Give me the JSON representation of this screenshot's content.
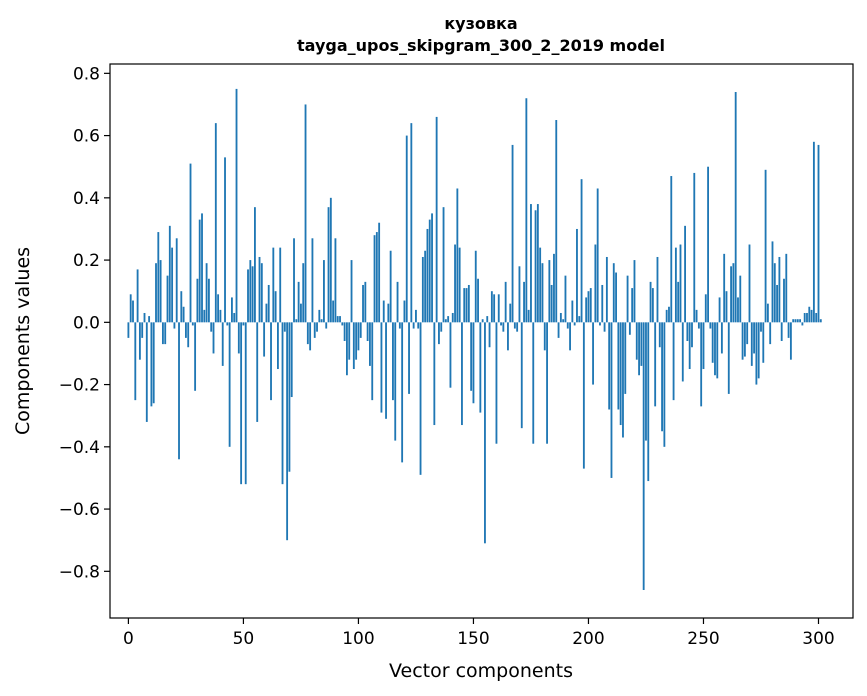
{
  "chart_data": {
    "type": "bar",
    "title": "кузовка",
    "subtitle": "tayga_upos_skipgram_300_2_2019 model",
    "xlabel": "Vector components",
    "ylabel": "Components values",
    "xlim": [
      -8,
      315
    ],
    "ylim": [
      -0.95,
      0.83
    ],
    "x_ticks": [
      0,
      50,
      100,
      150,
      200,
      250,
      300
    ],
    "y_ticks": [
      -0.8,
      -0.6,
      -0.4,
      -0.2,
      0.0,
      0.2,
      0.4,
      0.6,
      0.8
    ],
    "x_tick_labels": [
      "0",
      "50",
      "100",
      "150",
      "200",
      "250",
      "300"
    ],
    "y_tick_labels": [
      "−0.8",
      "−0.6",
      "−0.4",
      "−0.2",
      "0.0",
      "0.2",
      "0.4",
      "0.6",
      "0.8"
    ],
    "grid": false,
    "bar_color": "#1f77b4",
    "values": [
      -0.05,
      0.09,
      0.07,
      -0.25,
      0.17,
      -0.12,
      -0.05,
      0.03,
      -0.32,
      0.02,
      -0.27,
      -0.26,
      0.19,
      0.29,
      0.2,
      -0.07,
      -0.07,
      0.15,
      0.31,
      0.24,
      -0.02,
      0.27,
      -0.44,
      0.1,
      0.05,
      -0.05,
      -0.08,
      0.51,
      -0.01,
      -0.22,
      0.14,
      0.33,
      0.35,
      0.04,
      0.19,
      0.14,
      -0.03,
      -0.1,
      0.64,
      0.09,
      0.04,
      -0.14,
      0.53,
      -0.01,
      -0.4,
      0.08,
      0.03,
      0.75,
      -0.1,
      -0.52,
      -0.01,
      -0.52,
      0.17,
      0.2,
      0.18,
      0.37,
      -0.32,
      0.21,
      0.19,
      -0.11,
      0.06,
      0.12,
      -0.25,
      0.24,
      0.1,
      -0.15,
      0.24,
      -0.52,
      -0.03,
      -0.7,
      -0.48,
      -0.24,
      0.27,
      0.01,
      0.13,
      0.06,
      0.19,
      0.7,
      -0.07,
      -0.09,
      0.27,
      -0.05,
      -0.03,
      0.04,
      0.01,
      0.2,
      -0.02,
      0.37,
      0.4,
      0.07,
      0.27,
      0.02,
      0.02,
      -0.01,
      -0.06,
      -0.17,
      -0.12,
      0.2,
      -0.15,
      -0.12,
      -0.09,
      -0.05,
      0.12,
      0.13,
      -0.06,
      -0.14,
      -0.25,
      0.28,
      0.29,
      0.32,
      -0.29,
      0.07,
      -0.31,
      0.06,
      0.23,
      -0.25,
      -0.38,
      0.13,
      -0.02,
      -0.45,
      0.07,
      0.6,
      -0.23,
      0.64,
      -0.02,
      0.04,
      -0.02,
      -0.49,
      0.21,
      0.23,
      0.3,
      0.33,
      0.35,
      -0.33,
      0.66,
      -0.07,
      -0.03,
      0.37,
      0.01,
      0.02,
      -0.21,
      0.03,
      0.25,
      0.43,
      0.24,
      -0.33,
      0.11,
      0.11,
      0.12,
      -0.22,
      -0.26,
      0.23,
      0.14,
      -0.29,
      0.01,
      -0.71,
      0.02,
      -0.08,
      0.1,
      0.09,
      -0.39,
      0.09,
      -0.01,
      -0.03,
      0.13,
      -0.09,
      0.06,
      0.57,
      -0.02,
      -0.03,
      0.18,
      -0.34,
      0.13,
      0.72,
      0.04,
      0.38,
      -0.39,
      0.36,
      0.38,
      0.24,
      0.19,
      -0.09,
      -0.39,
      0.2,
      0.12,
      0.22,
      0.65,
      -0.05,
      0.03,
      0.01,
      0.15,
      -0.02,
      -0.09,
      0.07,
      -0.01,
      0.3,
      0.02,
      0.46,
      -0.47,
      0.08,
      0.1,
      0.11,
      -0.2,
      0.25,
      0.43,
      -0.01,
      0.12,
      -0.03,
      0.21,
      -0.28,
      -0.5,
      0.19,
      0.16,
      -0.28,
      -0.33,
      -0.37,
      -0.23,
      0.15,
      -0.04,
      0.11,
      0.2,
      -0.12,
      -0.17,
      -0.14,
      -0.86,
      -0.38,
      -0.51,
      0.13,
      0.11,
      -0.27,
      0.21,
      -0.08,
      -0.35,
      -0.4,
      0.04,
      0.05,
      0.47,
      -0.25,
      0.24,
      0.13,
      0.25,
      -0.19,
      0.31,
      -0.06,
      -0.15,
      -0.08,
      0.48,
      0.04,
      -0.02,
      -0.27,
      -0.15,
      0.09,
      0.5,
      -0.02,
      -0.13,
      -0.17,
      -0.18,
      0.08,
      -0.1,
      0.22,
      0.1,
      -0.23,
      0.18,
      0.19,
      0.74,
      0.08,
      0.15,
      -0.12,
      -0.11,
      -0.07,
      0.25,
      -0.14,
      -0.1,
      -0.2,
      -0.18,
      -0.03,
      -0.13,
      0.49,
      0.06,
      -0.07,
      0.26,
      0.19,
      0.12,
      0.21,
      -0.06,
      0.14,
      0.22,
      -0.05,
      -0.12,
      0.01,
      0.01,
      0.01,
      0.01,
      -0.01,
      0.03,
      0.03,
      0.05,
      0.04,
      0.58,
      0.03,
      0.57,
      0.01
    ]
  }
}
